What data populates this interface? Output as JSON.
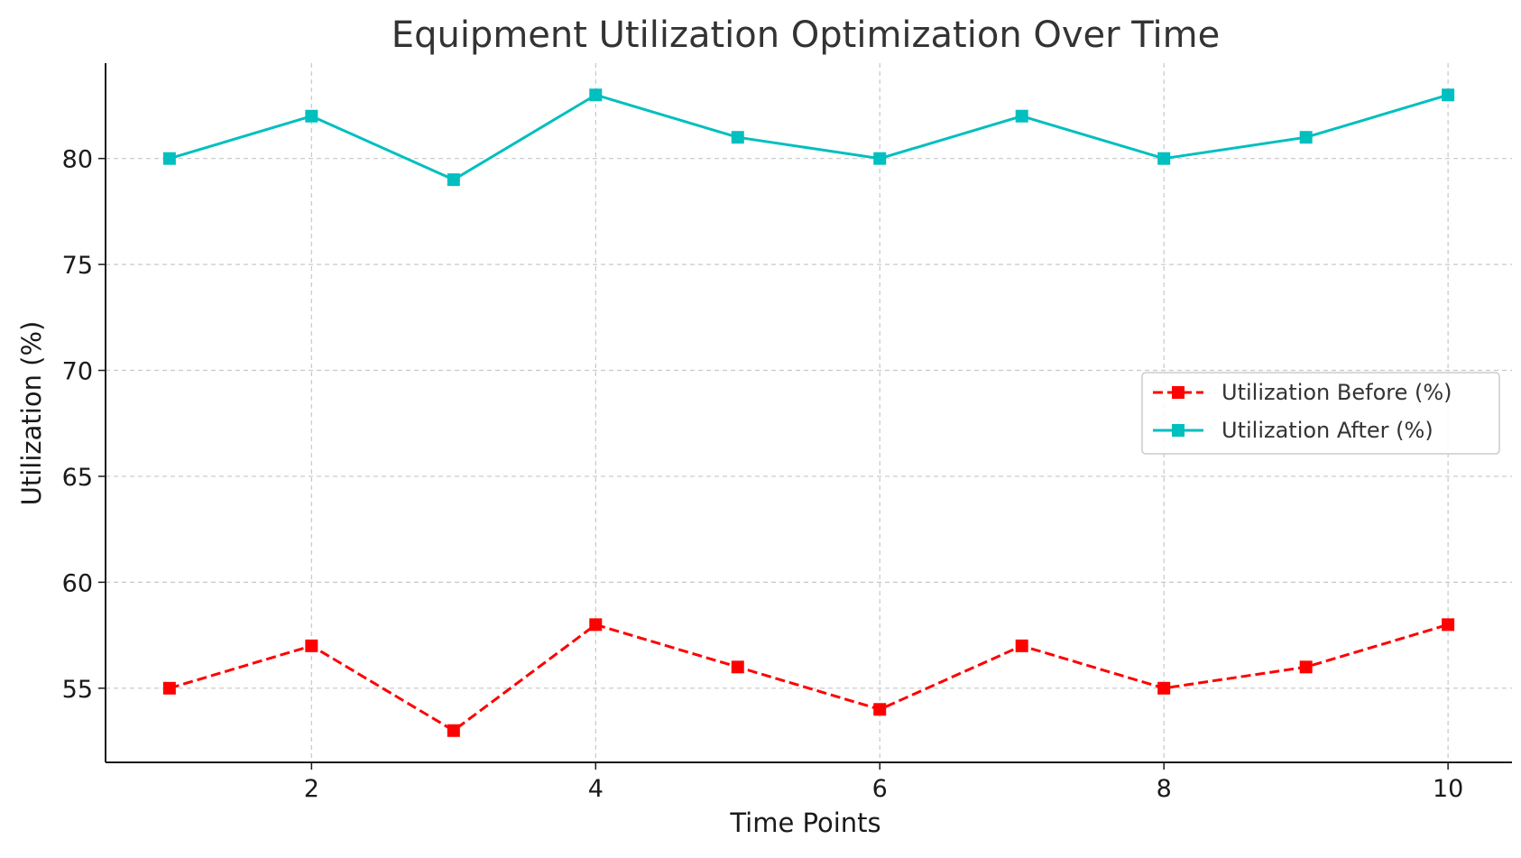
{
  "chart_data": {
    "type": "line",
    "title": "Equipment Utilization Optimization Over Time",
    "xlabel": "Time Points",
    "ylabel": "Utilization (%)",
    "x": [
      1,
      2,
      3,
      4,
      5,
      6,
      7,
      8,
      9,
      10
    ],
    "xlim": [
      0.55,
      10.45
    ],
    "ylim": [
      51.5,
      84.5
    ],
    "xticks": [
      2,
      4,
      6,
      8,
      10
    ],
    "yticks": [
      55,
      60,
      65,
      70,
      75,
      80
    ],
    "grid": true,
    "legend_position": "center-right",
    "series": [
      {
        "name": "Utilization Before (%)",
        "values": [
          55,
          57,
          53,
          58,
          56,
          54,
          57,
          55,
          56,
          58
        ],
        "color": "#ff0000",
        "line_style": "dashed",
        "marker": "square"
      },
      {
        "name": "Utilization After (%)",
        "values": [
          80,
          82,
          79,
          83,
          81,
          80,
          82,
          80,
          81,
          83
        ],
        "color": "#00bfbf",
        "line_style": "solid",
        "marker": "square"
      }
    ]
  }
}
